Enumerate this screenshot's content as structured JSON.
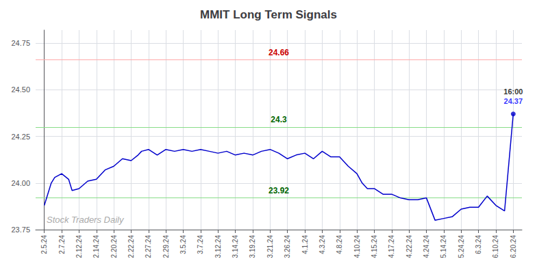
{
  "chart_data": {
    "type": "line",
    "title": "MMIT Long Term Signals",
    "watermark": "Stock Traders Daily",
    "x": [
      0,
      0.4,
      0.6,
      1,
      1.4,
      1.6,
      2,
      2.5,
      3,
      3.5,
      4,
      4.5,
      5,
      5.4,
      5.6,
      6,
      6.5,
      7,
      7.5,
      8,
      8.5,
      9,
      9.5,
      10,
      10.5,
      11,
      11.5,
      12,
      12.5,
      13,
      13.5,
      14,
      14.5,
      15,
      15.5,
      16,
      16.5,
      17,
      17.5,
      18,
      18.3,
      18.6,
      19,
      19.5,
      20,
      20.5,
      21,
      21.5,
      22,
      22.5,
      23,
      23.5,
      24,
      24.5,
      25,
      25.5,
      26,
      26.5,
      27
    ],
    "values": [
      23.88,
      24.0,
      24.03,
      24.05,
      24.02,
      23.96,
      23.97,
      24.01,
      24.02,
      24.07,
      24.09,
      24.13,
      24.12,
      24.15,
      24.17,
      24.18,
      24.15,
      24.18,
      24.17,
      24.18,
      24.17,
      24.18,
      24.17,
      24.16,
      24.17,
      24.15,
      24.16,
      24.15,
      24.17,
      24.18,
      24.16,
      24.13,
      24.15,
      24.16,
      24.13,
      24.17,
      24.14,
      24.14,
      24.09,
      24.05,
      24.0,
      23.97,
      23.97,
      23.94,
      23.94,
      23.92,
      23.91,
      23.91,
      23.92,
      23.8,
      23.81,
      23.82,
      23.86,
      23.87,
      23.87,
      23.93,
      23.88,
      23.85,
      24.37
    ],
    "color": "#0000cc",
    "last_point": {
      "x": 27,
      "y": 24.37,
      "label": "16:00",
      "value_label": "24.37",
      "label_color": "black",
      "value_color": "blue"
    },
    "hlines": [
      {
        "value": 24.66,
        "label": "24.66",
        "color": "#ffaaaa",
        "label_color": "#cc0000"
      },
      {
        "value": 24.3,
        "label": "24.3",
        "color": "#88dd88",
        "label_color": "#006600"
      },
      {
        "value": 23.92,
        "label": "23.92",
        "color": "#88dd88",
        "label_color": "#006600"
      }
    ],
    "xlim": [
      -0.5,
      27.5
    ],
    "xticks": [
      {
        "value": 0,
        "label": "2.5.24"
      },
      {
        "value": 1,
        "label": "2.7.24"
      },
      {
        "value": 2,
        "label": "2.12.24"
      },
      {
        "value": 3,
        "label": "2.14.24"
      },
      {
        "value": 4,
        "label": "2.20.24"
      },
      {
        "value": 5,
        "label": "2.22.24"
      },
      {
        "value": 6,
        "label": "2.27.24"
      },
      {
        "value": 7,
        "label": "2.29.24"
      },
      {
        "value": 8,
        "label": "3.5.24"
      },
      {
        "value": 9,
        "label": "3.7.24"
      },
      {
        "value": 10,
        "label": "3.12.24"
      },
      {
        "value": 11,
        "label": "3.14.24"
      },
      {
        "value": 12,
        "label": "3.19.24"
      },
      {
        "value": 13,
        "label": "3.21.24"
      },
      {
        "value": 14,
        "label": "3.26.24"
      },
      {
        "value": 15,
        "label": "4.1.24"
      },
      {
        "value": 16,
        "label": "4.3.24"
      },
      {
        "value": 17,
        "label": "4.8.24"
      },
      {
        "value": 18,
        "label": "4.10.24"
      },
      {
        "value": 19,
        "label": "4.15.24"
      },
      {
        "value": 20,
        "label": "4.17.24"
      },
      {
        "value": 21,
        "label": "4.22.24"
      },
      {
        "value": 22,
        "label": "4.24.24"
      },
      {
        "value": 23,
        "label": "5.14.24"
      },
      {
        "value": 24,
        "label": "5.24.24"
      },
      {
        "value": 25,
        "label": "6.3.24"
      },
      {
        "value": 26,
        "label": "6.10.24"
      },
      {
        "value": 27,
        "label": "6.20.24"
      }
    ],
    "ylim": [
      23.75,
      24.82
    ],
    "yticks": [
      23.75,
      {
        "value": 24,
        "label": "24.00"
      },
      24.25,
      {
        "value": 24.5,
        "label": "24.50"
      },
      24.75
    ],
    "grid": true
  }
}
